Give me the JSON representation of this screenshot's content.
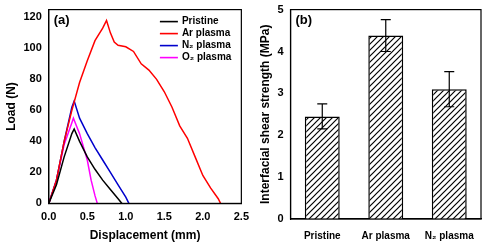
{
  "chart_data": [
    {
      "type": "line",
      "title": "(a)",
      "x_label": "Displacement (mm)",
      "y_label": "Load (N)",
      "xlim": [
        0,
        2.5
      ],
      "xticks": [
        {
          "value": 0,
          "label": "0.0"
        },
        0.5,
        {
          "value": 1,
          "label": "1.0"
        },
        1.5,
        {
          "value": 2,
          "label": "2.0"
        },
        2.5
      ],
      "ylim": [
        0,
        125
      ],
      "yticks": [
        0,
        20,
        40,
        60,
        80,
        100,
        120
      ],
      "grid": false,
      "legend": "upper right",
      "series": [
        {
          "name": "Pristine",
          "color": "#000000",
          "x": [
            0,
            0.1,
            0.2,
            0.3,
            0.33,
            0.4,
            0.5,
            0.6,
            0.7,
            0.8,
            0.9,
            0.95
          ],
          "values": [
            0,
            12,
            30,
            45,
            48,
            40,
            30,
            22,
            15,
            9,
            3,
            0
          ]
        },
        {
          "name": "Ar plasma",
          "color": "#ff0000",
          "x": [
            0,
            0.1,
            0.2,
            0.3,
            0.4,
            0.5,
            0.6,
            0.7,
            0.75,
            0.8,
            0.85,
            0.9,
            1.0,
            1.1,
            1.2,
            1.3,
            1.4,
            1.5,
            1.6,
            1.7,
            1.8,
            1.9,
            2.0,
            2.1,
            2.2,
            2.23
          ],
          "values": [
            0,
            15,
            40,
            60,
            78,
            92,
            105,
            113,
            118,
            110,
            104,
            102,
            101,
            98,
            90,
            86,
            80,
            72,
            62,
            50,
            42,
            30,
            18,
            10,
            3,
            0
          ]
        },
        {
          "name": "N₂ plasma",
          "color": "#0000cc",
          "x": [
            0,
            0.1,
            0.2,
            0.3,
            0.33,
            0.4,
            0.5,
            0.6,
            0.7,
            0.8,
            0.9,
            1.0,
            1.04
          ],
          "values": [
            0,
            15,
            40,
            62,
            66,
            55,
            45,
            36,
            28,
            20,
            12,
            4,
            0
          ]
        },
        {
          "name": "O₂ plasma",
          "color": "#ff00ff",
          "x": [
            0,
            0.1,
            0.2,
            0.3,
            0.32,
            0.4,
            0.5,
            0.55,
            0.6,
            0.63
          ],
          "values": [
            0,
            15,
            38,
            52,
            55,
            45,
            28,
            15,
            5,
            0
          ]
        }
      ]
    },
    {
      "type": "bar",
      "title": "(b)",
      "y_label": "Interfacial shear strength (MPa)",
      "categories": [
        "Pristine",
        "Ar plasma",
        "N₂ plasma"
      ],
      "values": [
        2.45,
        4.38,
        3.1
      ],
      "errors": [
        0.3,
        0.38,
        0.42
      ],
      "color": "#000000",
      "ylim": [
        0,
        5
      ],
      "yticks": [
        0,
        1,
        2,
        3,
        4,
        5
      ],
      "grid": false
    }
  ]
}
